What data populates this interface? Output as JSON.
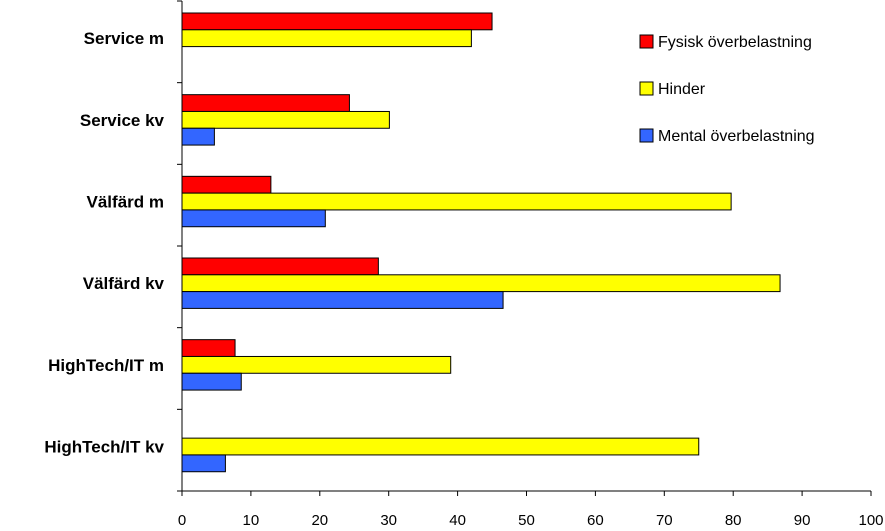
{
  "chart_data": {
    "type": "bar",
    "orientation": "horizontal",
    "categories": [
      "Service m",
      "Service kv",
      "Välfärd m",
      "Välfärd kv",
      "HighTech/IT m",
      "HighTech/IT kv"
    ],
    "series": [
      {
        "name": "Fysisk överbelastning",
        "color": "#ff0000",
        "values": [
          45,
          24.3,
          12.9,
          28.5,
          7.7,
          0
        ]
      },
      {
        "name": "Hinder",
        "color": "#ffff00",
        "values": [
          42,
          30.1,
          79.7,
          86.8,
          39,
          75
        ]
      },
      {
        "name": "Mental överbelastning",
        "color": "#3366ff",
        "values": [
          0,
          4.7,
          20.8,
          46.6,
          8.6,
          6.3
        ]
      }
    ],
    "xlim": [
      0,
      100
    ],
    "xticks": [
      "0",
      "10",
      "20",
      "30",
      "40",
      "50",
      "60",
      "70",
      "80",
      "90",
      "100"
    ],
    "grid": false,
    "legend_position": "top-right"
  }
}
